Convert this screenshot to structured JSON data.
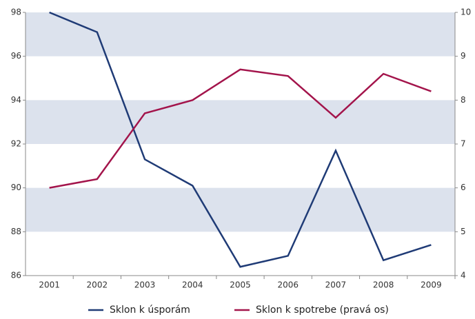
{
  "chart_data": {
    "type": "line",
    "categories": [
      "2001",
      "2002",
      "2003",
      "2004",
      "2005",
      "2006",
      "2007",
      "2008",
      "2009"
    ],
    "series": [
      {
        "name": "Sklon k úsporám",
        "color": "#1f3b76",
        "values": [
          98,
          97.1,
          91.3,
          90.1,
          86.4,
          86.9,
          91.7,
          86.7,
          87.4
        ]
      },
      {
        "name": "Sklon k spotrebe (pravá os)",
        "color": "#a3144b",
        "axis": "y2",
        "values": [
          6.0,
          6.2,
          7.7,
          8.0,
          8.7,
          8.55,
          7.6,
          8.6,
          8.2
        ]
      }
    ],
    "ylim": [
      86,
      98
    ],
    "yticks": [
      86,
      88,
      90,
      92,
      94,
      96,
      98
    ],
    "y2lim": [
      4,
      10
    ],
    "y2ticks": [
      4,
      5,
      6,
      7,
      8,
      9,
      10
    ],
    "grid": true,
    "band_color": "#dce2ed",
    "legend": "bottom"
  }
}
